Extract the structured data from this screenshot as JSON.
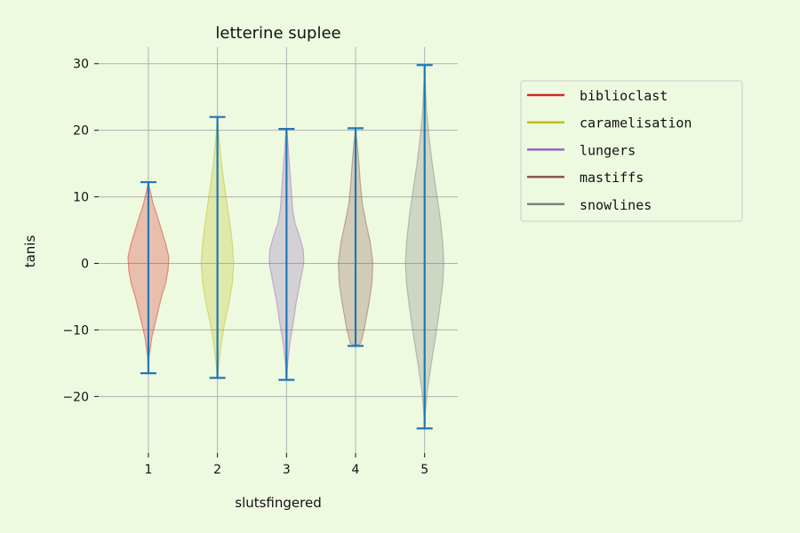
{
  "chart_data": {
    "type": "violin",
    "title": "letterine suplee",
    "xlabel": "slutsfingered",
    "ylabel": "tanis",
    "ylim": [
      -28.5,
      32.5
    ],
    "x_ticks": [
      "1",
      "2",
      "3",
      "4",
      "5"
    ],
    "y_ticks": [
      -20,
      -10,
      0,
      10,
      20,
      30
    ],
    "y_tick_labels": [
      "−20",
      "−10",
      "0",
      "10",
      "20",
      "30"
    ],
    "grid": true,
    "legend_position": "upper-right-outside",
    "background": "#eefae0",
    "whisker_color": "#1f77b4",
    "grid_color": "#b0b0b0",
    "series": [
      {
        "name": "biblioclast",
        "x": 1,
        "color": "#d62728",
        "min": -16.5,
        "max": 12.2,
        "profile": [
          [
            -16.5,
            0.0
          ],
          [
            -14,
            0.03
          ],
          [
            -11,
            0.15
          ],
          [
            -8,
            0.35
          ],
          [
            -5,
            0.55
          ],
          [
            -3,
            0.72
          ],
          [
            -1,
            0.82
          ],
          [
            1,
            0.85
          ],
          [
            3,
            0.72
          ],
          [
            5,
            0.55
          ],
          [
            7,
            0.38
          ],
          [
            9,
            0.2
          ],
          [
            11,
            0.07
          ],
          [
            12.2,
            0.0
          ]
        ]
      },
      {
        "name": "caramelisation",
        "x": 2,
        "color": "#bcbd22",
        "min": -17.2,
        "max": 22.0,
        "profile": [
          [
            -17.2,
            0.0
          ],
          [
            -15,
            0.06
          ],
          [
            -12,
            0.16
          ],
          [
            -9,
            0.3
          ],
          [
            -6,
            0.48
          ],
          [
            -3,
            0.62
          ],
          [
            0,
            0.68
          ],
          [
            3,
            0.62
          ],
          [
            6,
            0.52
          ],
          [
            9,
            0.4
          ],
          [
            12,
            0.28
          ],
          [
            15,
            0.17
          ],
          [
            18,
            0.09
          ],
          [
            20,
            0.04
          ],
          [
            22,
            0.0
          ]
        ]
      },
      {
        "name": "lungers",
        "x": 3,
        "color": "#9467bd",
        "min": -17.5,
        "max": 20.2,
        "profile": [
          [
            -17.5,
            0.0
          ],
          [
            -15,
            0.05
          ],
          [
            -12,
            0.14
          ],
          [
            -9,
            0.28
          ],
          [
            -6,
            0.4
          ],
          [
            -3,
            0.56
          ],
          [
            0,
            0.72
          ],
          [
            2,
            0.7
          ],
          [
            4,
            0.55
          ],
          [
            6,
            0.36
          ],
          [
            8,
            0.26
          ],
          [
            11,
            0.2
          ],
          [
            14,
            0.14
          ],
          [
            17,
            0.08
          ],
          [
            19,
            0.04
          ],
          [
            20.2,
            0.0
          ]
        ]
      },
      {
        "name": "mastiffs",
        "x": 4,
        "color": "#8c564b",
        "min": -12.4,
        "max": 20.3,
        "profile": [
          [
            -12.4,
            0.0
          ],
          [
            -12,
            0.22
          ],
          [
            -10,
            0.36
          ],
          [
            -8,
            0.46
          ],
          [
            -6,
            0.56
          ],
          [
            -3,
            0.68
          ],
          [
            0,
            0.72
          ],
          [
            3,
            0.62
          ],
          [
            6,
            0.44
          ],
          [
            9,
            0.28
          ],
          [
            12,
            0.2
          ],
          [
            15,
            0.14
          ],
          [
            18,
            0.07
          ],
          [
            20.3,
            0.0
          ]
        ]
      },
      {
        "name": "snowlines",
        "x": 5,
        "color": "#7f7f7f",
        "min": -24.8,
        "max": 29.8,
        "profile": [
          [
            -24.8,
            0.0
          ],
          [
            -22,
            0.04
          ],
          [
            -19,
            0.12
          ],
          [
            -15,
            0.28
          ],
          [
            -11,
            0.46
          ],
          [
            -7,
            0.62
          ],
          [
            -3,
            0.76
          ],
          [
            0,
            0.8
          ],
          [
            3,
            0.76
          ],
          [
            7,
            0.64
          ],
          [
            11,
            0.48
          ],
          [
            15,
            0.32
          ],
          [
            19,
            0.18
          ],
          [
            23,
            0.08
          ],
          [
            27,
            0.03
          ],
          [
            29.8,
            0.0
          ]
        ]
      }
    ]
  }
}
